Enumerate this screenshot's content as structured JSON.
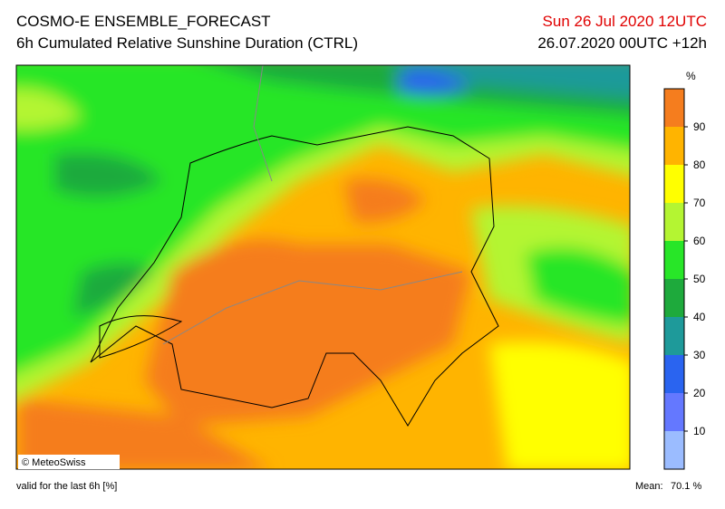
{
  "header": {
    "title": "COSMO-E ENSEMBLE_FORECAST",
    "subtitle": "6h Cumulated Relative Sunshine Duration (CTRL)",
    "date": "Sun 26 Jul 2020 12UTC",
    "run": "26.07.2020 00UTC +12h"
  },
  "map": {
    "credit": "© MeteoSwiss"
  },
  "colorbar": {
    "unit": "%",
    "range": [
      0,
      100
    ],
    "ticks": [
      10,
      20,
      30,
      40,
      50,
      60,
      70,
      80,
      90
    ],
    "colors": [
      "#9bbcff",
      "#6478ff",
      "#2a64f0",
      "#1e9a9a",
      "#1eaa3c",
      "#28e628",
      "#b4f532",
      "#ffff00",
      "#ffb400",
      "#f57d1e"
    ]
  },
  "footer": {
    "validity": "valid for the last 6h [%]",
    "mean_label": "Mean:",
    "mean_value": "70.1 %"
  }
}
